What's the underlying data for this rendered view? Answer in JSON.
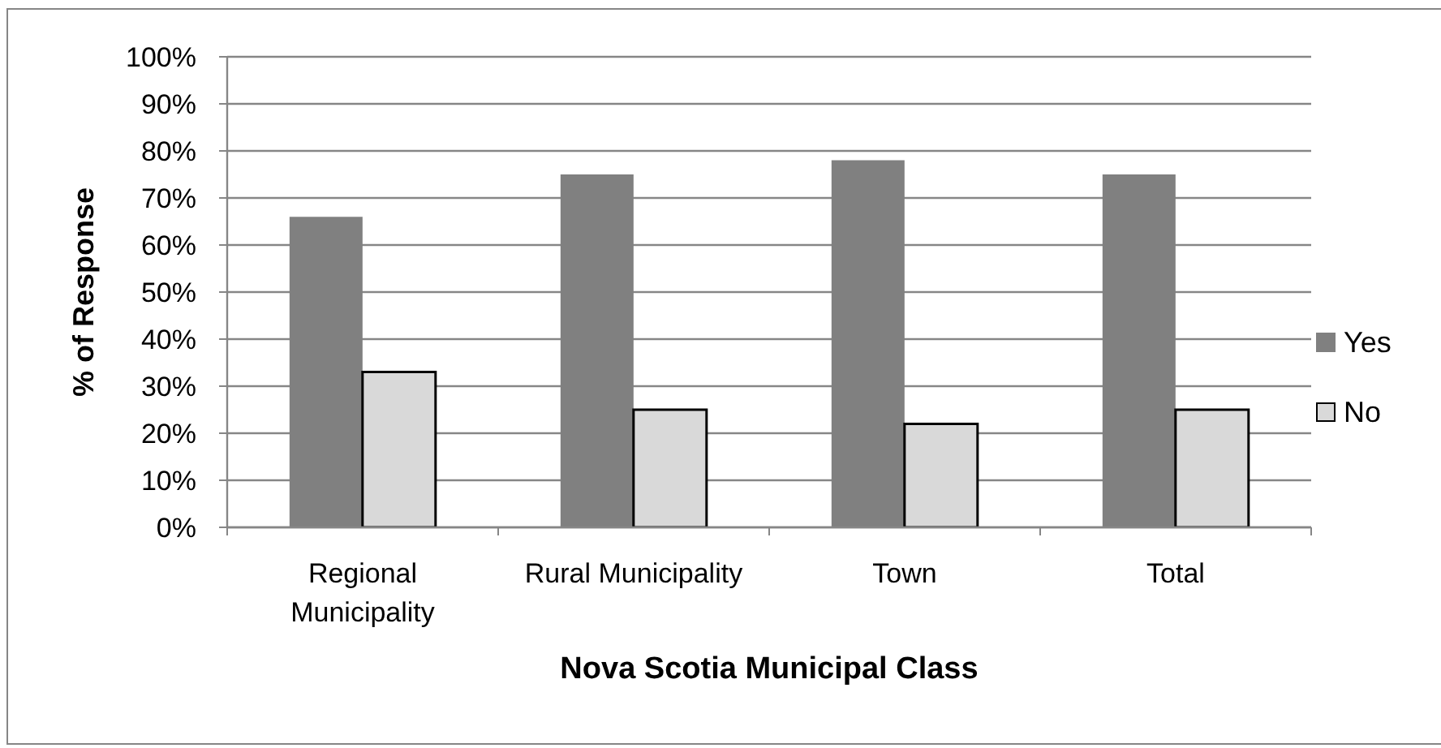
{
  "chart_data": {
    "type": "bar",
    "categories": [
      "Regional Municipality",
      "Rural Municipality",
      "Town",
      "Total"
    ],
    "series": [
      {
        "name": "Yes",
        "color": "#808080",
        "values": [
          66,
          75,
          78,
          75
        ]
      },
      {
        "name": "No",
        "color": "#d9d9d9",
        "values": [
          33,
          25,
          22,
          25
        ]
      }
    ],
    "xlabel": "Nova Scotia Municipal Class",
    "ylabel": "% of Response",
    "ylim": [
      0,
      100
    ],
    "yticks": [
      {
        "value": 0,
        "label": "0%"
      },
      {
        "value": 10,
        "label": "10%"
      },
      {
        "value": 20,
        "label": "20%"
      },
      {
        "value": 30,
        "label": "30%"
      },
      {
        "value": 40,
        "label": "40%"
      },
      {
        "value": 50,
        "label": "50%"
      },
      {
        "value": 60,
        "label": "60%"
      },
      {
        "value": 70,
        "label": "70%"
      },
      {
        "value": 80,
        "label": "80%"
      },
      {
        "value": 90,
        "label": "90%"
      },
      {
        "value": 100,
        "label": "100%"
      }
    ],
    "grid": "y",
    "legend": "right"
  }
}
